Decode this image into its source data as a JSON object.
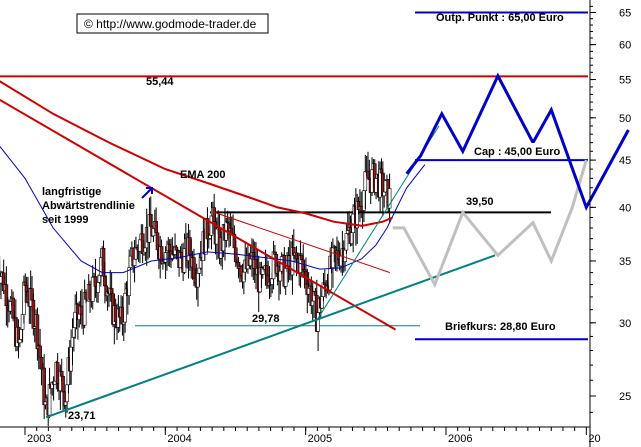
{
  "chart_data": {
    "type": "candlestick",
    "copyright": "© http://www.godmode-trader.de",
    "y_scale": "log",
    "ylim": [
      22.5,
      67.5
    ],
    "y_ticks": [
      "65",
      "60",
      "55",
      "50",
      "45",
      "40",
      "35",
      "30",
      "25"
    ],
    "x_ticks": [
      "2003",
      "2004",
      "2005",
      "2006",
      "20"
    ],
    "annotations": {
      "target": "Outp. Punkt : 65,00 Euro",
      "level_high": "55,44",
      "cap": "Cap : 45,00 Euro",
      "level_mid": "39,50",
      "level_low": "29,78",
      "briefkurs": "Briefkurs: 28,80 Euro",
      "ema": "EMA 200",
      "trend_line1": "langfristige",
      "trend_line2": "Abwärtstrendlinie",
      "trend_line3": "seit 1999",
      "low": "23,71"
    },
    "levels": [
      {
        "name": "Outp. Punkt",
        "value": 65.0,
        "color": "#0000c8"
      },
      {
        "name": "resistance",
        "value": 55.44,
        "color": "#d00000"
      },
      {
        "name": "Cap",
        "value": 45.0,
        "color": "#0000c8"
      },
      {
        "name": "breakout",
        "value": 39.5,
        "color": "#000000"
      },
      {
        "name": "support",
        "value": 29.78,
        "color": "#008080"
      },
      {
        "name": "Briefkurs",
        "value": 28.8,
        "color": "#0000c8"
      }
    ],
    "price_path": [
      [
        2002.8,
        35
      ],
      [
        2002.88,
        32
      ],
      [
        2002.96,
        28
      ],
      [
        2003.0,
        33
      ],
      [
        2003.08,
        30
      ],
      [
        2003.15,
        24
      ],
      [
        2003.22,
        27
      ],
      [
        2003.29,
        25
      ],
      [
        2003.35,
        30
      ],
      [
        2003.42,
        31
      ],
      [
        2003.5,
        33
      ],
      [
        2003.55,
        35
      ],
      [
        2003.62,
        31
      ],
      [
        2003.69,
        30
      ],
      [
        2003.76,
        35
      ],
      [
        2003.83,
        37
      ],
      [
        2003.9,
        38
      ],
      [
        2003.97,
        36
      ],
      [
        2004.03,
        36
      ],
      [
        2004.1,
        35
      ],
      [
        2004.17,
        36
      ],
      [
        2004.22,
        34
      ],
      [
        2004.28,
        37
      ],
      [
        2004.33,
        39
      ],
      [
        2004.39,
        36
      ],
      [
        2004.44,
        38
      ],
      [
        2004.5,
        36
      ],
      [
        2004.56,
        34
      ],
      [
        2004.62,
        35
      ],
      [
        2004.68,
        33
      ],
      [
        2004.73,
        34
      ],
      [
        2004.79,
        35
      ],
      [
        2004.85,
        34
      ],
      [
        2004.9,
        35
      ],
      [
        2004.96,
        35
      ],
      [
        2005.02,
        33
      ],
      [
        2005.08,
        30.5
      ],
      [
        2005.14,
        33
      ],
      [
        2005.2,
        35
      ],
      [
        2005.26,
        36
      ],
      [
        2005.32,
        38
      ],
      [
        2005.38,
        40
      ],
      [
        2005.44,
        43
      ],
      [
        2005.5,
        43
      ],
      [
        2005.55,
        42
      ],
      [
        2005.6,
        41
      ]
    ],
    "ema_200": [
      [
        2002.8,
        47
      ],
      [
        2003.0,
        43
      ],
      [
        2003.2,
        38
      ],
      [
        2003.4,
        35
      ],
      [
        2003.55,
        34
      ],
      [
        2003.7,
        34
      ],
      [
        2003.9,
        35
      ],
      [
        2004.1,
        35.3
      ],
      [
        2004.3,
        35.8
      ],
      [
        2004.5,
        35.6
      ],
      [
        2004.7,
        35.3
      ],
      [
        2004.9,
        35
      ],
      [
        2005.1,
        34.3
      ],
      [
        2005.25,
        34.4
      ],
      [
        2005.4,
        35.2
      ],
      [
        2005.5,
        36.4
      ],
      [
        2005.58,
        38
      ],
      [
        2005.65,
        40
      ],
      [
        2005.72,
        42
      ],
      [
        2005.85,
        44.5
      ]
    ],
    "long_downtrend": [
      [
        2002.8,
        52.5
      ],
      [
        2005.64,
        29.5
      ]
    ],
    "red_channel": [
      [
        2002.8,
        55
      ],
      [
        2003.2,
        50.5
      ],
      [
        2003.6,
        47
      ],
      [
        2004.0,
        44
      ],
      [
        2004.3,
        42.5
      ],
      [
        2004.6,
        41
      ],
      [
        2004.8,
        40
      ],
      [
        2005.0,
        39.4
      ],
      [
        2005.2,
        38.6
      ],
      [
        2005.4,
        38.2
      ],
      [
        2005.55,
        38.6
      ],
      [
        2005.62,
        39
      ]
    ],
    "mid_trendline": [
      [
        2004.35,
        39.5
      ],
      [
        2005.6,
        34
      ]
    ],
    "support_line": [
      [
        2003.15,
        23.71
      ],
      [
        2006.35,
        35.5
      ]
    ],
    "steep_trend": [
      [
        2005.08,
        30.2
      ],
      [
        2005.95,
        49
      ]
    ],
    "projection_blue": [
      [
        2005.72,
        43.5
      ],
      [
        2005.82,
        45.5
      ],
      [
        2005.97,
        50.5
      ],
      [
        2006.12,
        46
      ],
      [
        2006.37,
        55.5
      ],
      [
        2006.62,
        47
      ],
      [
        2006.75,
        51
      ],
      [
        2007.0,
        40
      ],
      [
        2007.3,
        48.5
      ]
    ],
    "projection_gray": [
      [
        2005.62,
        38
      ],
      [
        2005.7,
        38
      ],
      [
        2005.92,
        33
      ],
      [
        2006.12,
        39.5
      ],
      [
        2006.37,
        35.5
      ],
      [
        2006.62,
        38.5
      ],
      [
        2006.75,
        35
      ],
      [
        2006.9,
        40
      ],
      [
        2007.0,
        45
      ]
    ]
  }
}
